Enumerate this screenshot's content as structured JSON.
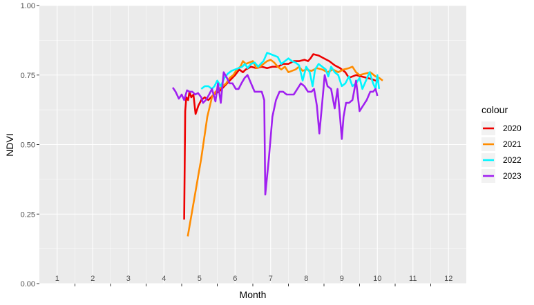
{
  "chart_data": {
    "type": "line",
    "xlabel": "Month",
    "ylabel": "NDVI",
    "xlim": [
      0.5,
      12.5
    ],
    "ylim": [
      0,
      1
    ],
    "x_ticks": [
      1,
      2,
      3,
      4,
      5,
      6,
      7,
      8,
      9,
      10,
      11,
      12
    ],
    "y_ticks": [
      0,
      0.25,
      0.5,
      0.75,
      1.0
    ],
    "y_tick_labels": [
      "0.00",
      "0.25",
      "0.50",
      "0.75",
      "1.00"
    ],
    "grid": true,
    "legend": {
      "title": "colour",
      "position": "right"
    },
    "series": [
      {
        "name": "2020",
        "color": "#ee0000",
        "points": [
          [
            4.57,
            0.23
          ],
          [
            4.6,
            0.62
          ],
          [
            4.63,
            0.67
          ],
          [
            4.68,
            0.66
          ],
          [
            4.72,
            0.69
          ],
          [
            4.77,
            0.67
          ],
          [
            4.83,
            0.68
          ],
          [
            4.89,
            0.61
          ],
          [
            4.97,
            0.64
          ],
          [
            5.05,
            0.66
          ],
          [
            5.15,
            0.67
          ],
          [
            5.25,
            0.66
          ],
          [
            5.4,
            0.68
          ],
          [
            5.55,
            0.69
          ],
          [
            5.7,
            0.71
          ],
          [
            5.85,
            0.73
          ],
          [
            6.0,
            0.75
          ],
          [
            6.12,
            0.77
          ],
          [
            6.22,
            0.76
          ],
          [
            6.3,
            0.77
          ],
          [
            6.45,
            0.78
          ],
          [
            6.6,
            0.775
          ],
          [
            6.75,
            0.78
          ],
          [
            6.9,
            0.775
          ],
          [
            7.05,
            0.78
          ],
          [
            7.2,
            0.78
          ],
          [
            7.35,
            0.79
          ],
          [
            7.5,
            0.79
          ],
          [
            7.65,
            0.8
          ],
          [
            7.8,
            0.8
          ],
          [
            7.95,
            0.805
          ],
          [
            8.05,
            0.8
          ],
          [
            8.12,
            0.81
          ],
          [
            8.2,
            0.825
          ],
          [
            8.35,
            0.82
          ],
          [
            8.5,
            0.81
          ],
          [
            8.65,
            0.8
          ],
          [
            8.8,
            0.785
          ],
          [
            8.95,
            0.775
          ],
          [
            9.1,
            0.76
          ],
          [
            9.2,
            0.74
          ],
          [
            9.3,
            0.745
          ],
          [
            9.4,
            0.75
          ],
          [
            9.55,
            0.745
          ],
          [
            9.7,
            0.74
          ],
          [
            9.85,
            0.735
          ],
          [
            9.95,
            0.73
          ],
          [
            10.05,
            0.73
          ]
        ]
      },
      {
        "name": "2021",
        "color": "#ff8c00",
        "points": [
          [
            4.67,
            0.17
          ],
          [
            5.05,
            0.45
          ],
          [
            5.22,
            0.6
          ],
          [
            5.35,
            0.67
          ],
          [
            5.45,
            0.69
          ],
          [
            5.55,
            0.7
          ],
          [
            5.65,
            0.71
          ],
          [
            5.75,
            0.72
          ],
          [
            5.85,
            0.74
          ],
          [
            5.95,
            0.75
          ],
          [
            6.05,
            0.77
          ],
          [
            6.15,
            0.78
          ],
          [
            6.22,
            0.8
          ],
          [
            6.3,
            0.79
          ],
          [
            6.4,
            0.795
          ],
          [
            6.5,
            0.8
          ],
          [
            6.6,
            0.775
          ],
          [
            6.7,
            0.78
          ],
          [
            6.8,
            0.79
          ],
          [
            6.9,
            0.8
          ],
          [
            7.0,
            0.805
          ],
          [
            7.1,
            0.795
          ],
          [
            7.2,
            0.78
          ],
          [
            7.3,
            0.77
          ],
          [
            7.4,
            0.78
          ],
          [
            7.5,
            0.76
          ],
          [
            7.6,
            0.765
          ],
          [
            7.7,
            0.77
          ],
          [
            7.8,
            0.78
          ],
          [
            7.9,
            0.765
          ],
          [
            8.0,
            0.77
          ],
          [
            8.15,
            0.765
          ],
          [
            8.3,
            0.775
          ],
          [
            8.45,
            0.77
          ],
          [
            8.6,
            0.76
          ],
          [
            8.75,
            0.77
          ],
          [
            8.9,
            0.76
          ],
          [
            9.05,
            0.77
          ],
          [
            9.2,
            0.775
          ],
          [
            9.3,
            0.78
          ],
          [
            9.4,
            0.76
          ],
          [
            9.5,
            0.75
          ],
          [
            9.65,
            0.755
          ],
          [
            9.8,
            0.76
          ],
          [
            9.95,
            0.745
          ],
          [
            10.05,
            0.74
          ],
          [
            10.15,
            0.73
          ]
        ]
      },
      {
        "name": "2022",
        "color": "#00f5ff",
        "points": [
          [
            5.05,
            0.7
          ],
          [
            5.15,
            0.71
          ],
          [
            5.25,
            0.71
          ],
          [
            5.35,
            0.7
          ],
          [
            5.42,
            0.71
          ],
          [
            5.5,
            0.73
          ],
          [
            5.6,
            0.71
          ],
          [
            5.7,
            0.74
          ],
          [
            5.8,
            0.755
          ],
          [
            5.9,
            0.765
          ],
          [
            6.0,
            0.77
          ],
          [
            6.1,
            0.775
          ],
          [
            6.2,
            0.78
          ],
          [
            6.28,
            0.79
          ],
          [
            6.35,
            0.775
          ],
          [
            6.45,
            0.79
          ],
          [
            6.55,
            0.795
          ],
          [
            6.65,
            0.78
          ],
          [
            6.72,
            0.79
          ],
          [
            6.8,
            0.8
          ],
          [
            6.9,
            0.83
          ],
          [
            7.0,
            0.825
          ],
          [
            7.1,
            0.82
          ],
          [
            7.2,
            0.815
          ],
          [
            7.3,
            0.79
          ],
          [
            7.4,
            0.8
          ],
          [
            7.5,
            0.81
          ],
          [
            7.6,
            0.8
          ],
          [
            7.7,
            0.795
          ],
          [
            7.8,
            0.785
          ],
          [
            7.9,
            0.73
          ],
          [
            8.0,
            0.78
          ],
          [
            8.1,
            0.76
          ],
          [
            8.18,
            0.71
          ],
          [
            8.25,
            0.77
          ],
          [
            8.35,
            0.79
          ],
          [
            8.45,
            0.78
          ],
          [
            8.55,
            0.77
          ],
          [
            8.62,
            0.745
          ],
          [
            8.7,
            0.78
          ],
          [
            8.8,
            0.76
          ],
          [
            8.9,
            0.75
          ],
          [
            9.0,
            0.71
          ],
          [
            9.1,
            0.72
          ],
          [
            9.2,
            0.745
          ],
          [
            9.3,
            0.71
          ],
          [
            9.4,
            0.72
          ],
          [
            9.5,
            0.74
          ],
          [
            9.58,
            0.7
          ],
          [
            9.68,
            0.73
          ],
          [
            9.78,
            0.76
          ],
          [
            9.88,
            0.72
          ],
          [
            9.95,
            0.7
          ],
          [
            10.0,
            0.75
          ],
          [
            10.05,
            0.7
          ]
        ]
      },
      {
        "name": "2023",
        "color": "#a020f0",
        "points": [
          [
            4.25,
            0.705
          ],
          [
            4.33,
            0.69
          ],
          [
            4.42,
            0.665
          ],
          [
            4.5,
            0.68
          ],
          [
            4.57,
            0.66
          ],
          [
            4.65,
            0.695
          ],
          [
            4.72,
            0.69
          ],
          [
            4.8,
            0.69
          ],
          [
            4.88,
            0.68
          ],
          [
            4.96,
            0.685
          ],
          [
            5.05,
            0.67
          ],
          [
            5.1,
            0.65
          ],
          [
            5.18,
            0.66
          ],
          [
            5.27,
            0.68
          ],
          [
            5.35,
            0.7
          ],
          [
            5.45,
            0.655
          ],
          [
            5.52,
            0.72
          ],
          [
            5.6,
            0.65
          ],
          [
            5.68,
            0.76
          ],
          [
            5.77,
            0.74
          ],
          [
            5.85,
            0.72
          ],
          [
            5.93,
            0.72
          ],
          [
            6.02,
            0.7
          ],
          [
            6.1,
            0.7
          ],
          [
            6.18,
            0.72
          ],
          [
            6.27,
            0.74
          ],
          [
            6.35,
            0.75
          ],
          [
            6.45,
            0.72
          ],
          [
            6.55,
            0.69
          ],
          [
            6.65,
            0.69
          ],
          [
            6.75,
            0.69
          ],
          [
            6.82,
            0.66
          ],
          [
            6.85,
            0.32
          ],
          [
            6.95,
            0.45
          ],
          [
            7.05,
            0.6
          ],
          [
            7.15,
            0.66
          ],
          [
            7.25,
            0.69
          ],
          [
            7.35,
            0.69
          ],
          [
            7.45,
            0.68
          ],
          [
            7.55,
            0.68
          ],
          [
            7.65,
            0.68
          ],
          [
            7.75,
            0.7
          ],
          [
            7.85,
            0.72
          ],
          [
            7.95,
            0.71
          ],
          [
            8.05,
            0.69
          ],
          [
            8.15,
            0.69
          ],
          [
            8.22,
            0.7
          ],
          [
            8.3,
            0.64
          ],
          [
            8.37,
            0.54
          ],
          [
            8.45,
            0.65
          ],
          [
            8.52,
            0.75
          ],
          [
            8.6,
            0.71
          ],
          [
            8.7,
            0.7
          ],
          [
            8.8,
            0.63
          ],
          [
            8.88,
            0.7
          ],
          [
            8.95,
            0.6
          ],
          [
            9.0,
            0.52
          ],
          [
            9.05,
            0.6
          ],
          [
            9.12,
            0.65
          ],
          [
            9.2,
            0.65
          ],
          [
            9.3,
            0.66
          ],
          [
            9.4,
            0.73
          ],
          [
            9.5,
            0.62
          ],
          [
            9.6,
            0.64
          ],
          [
            9.7,
            0.66
          ],
          [
            9.8,
            0.69
          ],
          [
            9.88,
            0.69
          ],
          [
            9.95,
            0.7
          ],
          [
            10.0,
            0.675
          ]
        ]
      }
    ]
  }
}
